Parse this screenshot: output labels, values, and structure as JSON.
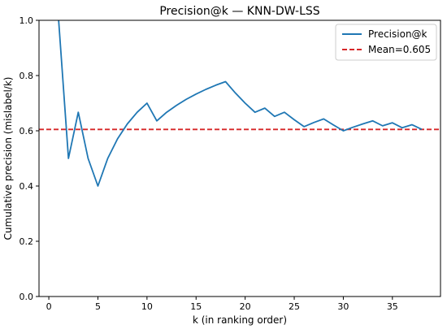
{
  "chart_data": {
    "type": "line",
    "title": "Precision@k — KNN-DW-LSS",
    "xlabel": "k (in ranking order)",
    "ylabel": "Cumulative precision (mislabel/k)",
    "xlim": [
      -1,
      39.9
    ],
    "ylim": [
      0.0,
      1.0
    ],
    "xticks": [
      0,
      5,
      10,
      15,
      20,
      25,
      30,
      35
    ],
    "yticks": [
      0.0,
      0.2,
      0.4,
      0.6,
      0.8,
      1.0
    ],
    "xtick_labels": [
      "0",
      "5",
      "10",
      "15",
      "20",
      "25",
      "30",
      "35"
    ],
    "ytick_labels": [
      "0.0",
      "0.2",
      "0.4",
      "0.6",
      "0.8",
      "1.0"
    ],
    "grid": false,
    "legend_position": "top-right",
    "series": [
      {
        "name": "Precision@k",
        "color": "#1f77b4",
        "style": "solid",
        "x": [
          1,
          2,
          3,
          4,
          5,
          6,
          7,
          8,
          9,
          10,
          11,
          12,
          13,
          14,
          15,
          16,
          17,
          18,
          19,
          20,
          21,
          22,
          23,
          24,
          25,
          26,
          27,
          28,
          29,
          30,
          31,
          32,
          33,
          34,
          35,
          36,
          37,
          38
        ],
        "y": [
          1.0,
          0.5,
          0.667,
          0.5,
          0.4,
          0.5,
          0.571,
          0.625,
          0.667,
          0.7,
          0.636,
          0.667,
          0.692,
          0.714,
          0.733,
          0.75,
          0.765,
          0.778,
          0.737,
          0.7,
          0.667,
          0.682,
          0.652,
          0.667,
          0.64,
          0.615,
          0.63,
          0.643,
          0.621,
          0.6,
          0.613,
          0.625,
          0.636,
          0.618,
          0.629,
          0.611,
          0.622,
          0.605
        ]
      }
    ],
    "reference_lines": [
      {
        "name": "Mean=0.605",
        "value": 0.605,
        "orientation": "horizontal",
        "color": "#d62728",
        "style": "dashed"
      }
    ]
  }
}
